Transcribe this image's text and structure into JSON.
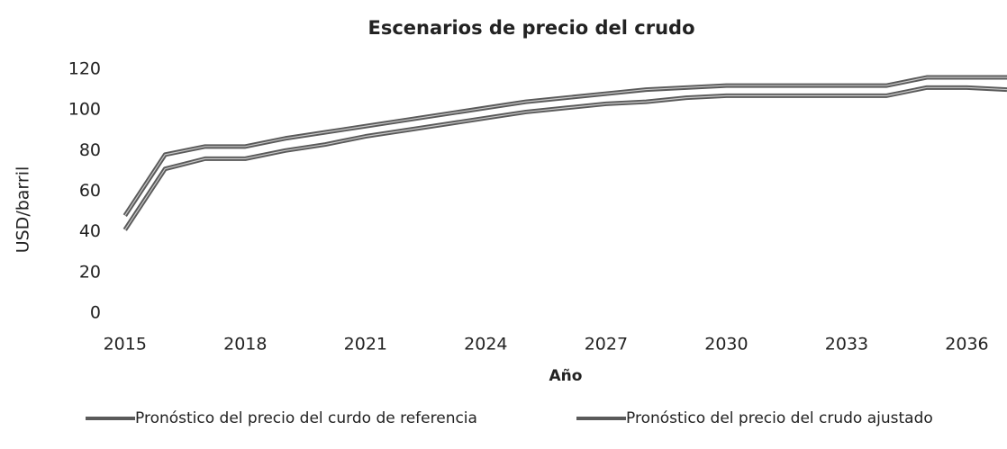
{
  "chart_data": {
    "type": "line",
    "title": "Escenarios de precio del crudo",
    "x_label": "Año",
    "y_label": "USD/barril",
    "x": [
      2015,
      2016,
      2017,
      2018,
      2019,
      2020,
      2021,
      2022,
      2023,
      2024,
      2025,
      2026,
      2027,
      2028,
      2029,
      2030,
      2031,
      2032,
      2033,
      2034,
      2035,
      2036,
      2037
    ],
    "series": [
      {
        "name": "Pronóstico  del precio del curdo de referencia",
        "color": "#5a5a5a",
        "values": [
          48,
          78,
          82,
          82,
          86,
          89,
          92,
          95,
          98,
          101,
          104,
          106,
          108,
          110,
          111,
          112,
          112,
          112,
          112,
          112,
          116,
          116,
          116
        ]
      },
      {
        "name": "Pronóstico del precio del crudo ajustado",
        "color": "#5a5a5a",
        "values": [
          41,
          71,
          76,
          76,
          80,
          83,
          87,
          90,
          93,
          96,
          99,
          101,
          103,
          104,
          106,
          107,
          107,
          107,
          107,
          107,
          111,
          111,
          110
        ]
      }
    ],
    "xlim": [
      2013.5,
      2037
    ],
    "xticks": [
      2015,
      2018,
      2021,
      2024,
      2027,
      2030,
      2033,
      2036
    ],
    "ylim": [
      0,
      120
    ],
    "yticks": [
      0,
      20,
      40,
      60,
      80,
      100,
      120
    ],
    "grid": false,
    "legend": "bottom"
  }
}
